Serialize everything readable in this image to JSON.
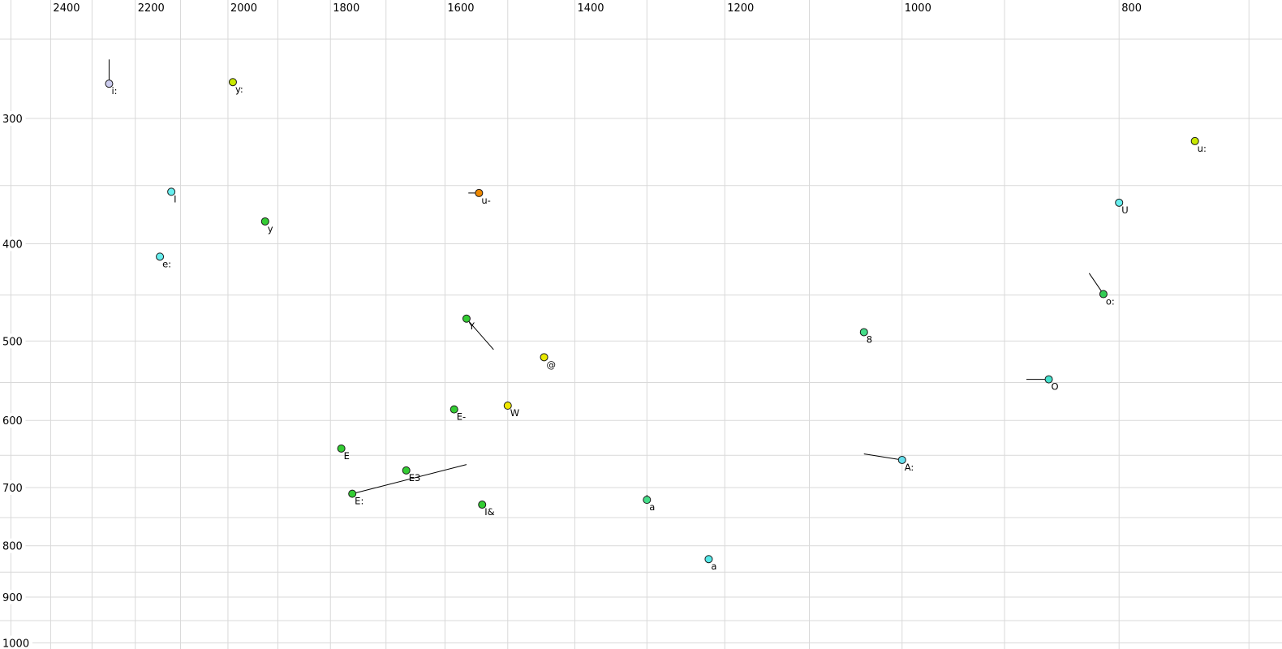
{
  "page": {
    "background": "#ffffff",
    "grid_color": "#d9d9d9"
  },
  "chart_data": {
    "type": "scatter",
    "title": "",
    "xlabel": "",
    "ylabel": "",
    "x_axis": {
      "scale": "log",
      "reversed": true,
      "tick_labels": [
        "2400",
        "2200",
        "2000",
        "1800",
        "1600",
        "1400",
        "1200",
        "1000",
        "800"
      ],
      "tick_values": [
        2400,
        2200,
        2000,
        1800,
        1600,
        1400,
        1200,
        1000,
        800
      ],
      "grid_step_hz": 100,
      "grid_max_hz": 2500,
      "grid_min_hz": 700,
      "range_left_hz": 2525,
      "range_right_hz": 670
    },
    "y_axis": {
      "scale": "log",
      "direction": "down",
      "tick_labels": [
        "300",
        "400",
        "500",
        "600",
        "700",
        "800",
        "900",
        "1000"
      ],
      "tick_values": [
        300,
        400,
        500,
        600,
        700,
        800,
        900,
        1000
      ],
      "grid_step_hz": 50,
      "grid_min_hz": 250,
      "grid_max_hz": 1000,
      "range_top_hz": 229,
      "range_bottom_hz": 1014
    },
    "legend": null,
    "grid": true,
    "points": [
      {
        "label": "i:",
        "f2": 2260,
        "f1": 277,
        "fill": "#ccccee",
        "tail_f2": 2260,
        "tail_f1": 262
      },
      {
        "label": "y:",
        "f2": 1990,
        "f1": 276,
        "fill": "#c8e800"
      },
      {
        "label": "I",
        "f2": 2120,
        "f1": 355,
        "fill": "#66eeee"
      },
      {
        "label": "y",
        "f2": 1925,
        "f1": 380,
        "fill": "#33cc33"
      },
      {
        "label": "e:",
        "f2": 2145,
        "f1": 412,
        "fill": "#66eeee"
      },
      {
        "label": "u-",
        "f2": 1545,
        "f1": 356,
        "fill": "#ee8800",
        "tail_f2": 1562,
        "tail_f1": 356
      },
      {
        "label": "u:",
        "f2": 740,
        "f1": 316,
        "fill": "#c8e800"
      },
      {
        "label": "U",
        "f2": 800,
        "f1": 364,
        "fill": "#66eeee"
      },
      {
        "label": "o:",
        "f2": 813,
        "f1": 449,
        "fill": "#33cc55",
        "tail_f2": 825,
        "tail_f1": 428
      },
      {
        "label": "8",
        "f2": 1040,
        "f1": 490,
        "fill": "#44dd88"
      },
      {
        "label": "Y",
        "f2": 1565,
        "f1": 475,
        "fill": "#33cc33",
        "tail_f2": 1522,
        "tail_f1": 510
      },
      {
        "label": "@",
        "f2": 1445,
        "f1": 519,
        "fill": "#e8e800"
      },
      {
        "label": "O",
        "f2": 860,
        "f1": 546,
        "fill": "#44e0cc",
        "tail_f2": 880,
        "tail_f1": 546
      },
      {
        "label": "W",
        "f2": 1500,
        "f1": 580,
        "fill": "#f0e800"
      },
      {
        "label": "E-",
        "f2": 1585,
        "f1": 585,
        "fill": "#33cc33"
      },
      {
        "label": "E",
        "f2": 1780,
        "f1": 640,
        "fill": "#33cc33"
      },
      {
        "label": "A:",
        "f2": 1000,
        "f1": 657,
        "fill": "#66e0ee",
        "tail_f2": 1040,
        "tail_f1": 648
      },
      {
        "label": "E3",
        "f2": 1665,
        "f1": 673,
        "fill": "#33cc33"
      },
      {
        "label": "E:",
        "f2": 1760,
        "f1": 710,
        "fill": "#33cc33",
        "tail_f2": 1565,
        "tail_f1": 664
      },
      {
        "label": "I&",
        "f2": 1540,
        "f1": 728,
        "fill": "#33cc33"
      },
      {
        "label": "a",
        "f2": 1300,
        "f1": 720,
        "fill": "#44dd88",
        "label_color": "#84849a",
        "tail_f2": 1300,
        "tail_f1": 712
      },
      {
        "label": "a",
        "f2": 1220,
        "f1": 825,
        "fill": "#55e8e8"
      }
    ]
  }
}
